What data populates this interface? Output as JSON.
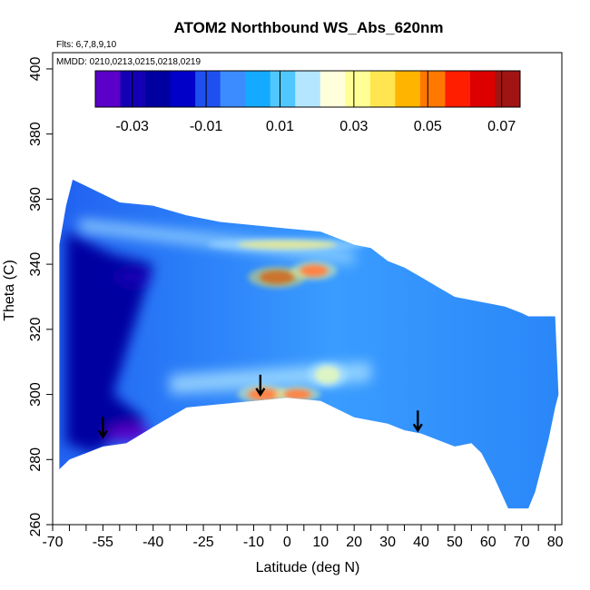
{
  "chart_data": {
    "type": "heatmap",
    "title": "ATOM2 Northbound WS_Abs_620nm",
    "flights_note": "Flts: 6,7,8,9,10",
    "dates_note": "MMDD: 0210,0213,0215,0218,0219",
    "xlabel": "Latitude (deg N)",
    "ylabel": "Theta (C)",
    "xlim": [
      -70,
      82
    ],
    "ylim": [
      260,
      405
    ],
    "x_ticks": [
      -70,
      -55,
      -40,
      -25,
      -10,
      0,
      10,
      20,
      30,
      40,
      50,
      60,
      70,
      80
    ],
    "x_tick_labels": [
      "-70",
      "-55",
      "-40",
      "-25",
      "-10",
      "0",
      "10",
      "20",
      "30",
      "40",
      "50",
      "60",
      "70",
      "80"
    ],
    "x_minor_ticks": [
      -65,
      -60,
      -50,
      -45,
      -35,
      -30,
      -20,
      -15,
      -5,
      5,
      15,
      25,
      35,
      45,
      55,
      65,
      75
    ],
    "y_ticks": [
      260,
      280,
      300,
      320,
      340,
      360,
      380,
      400
    ],
    "y_tick_labels": [
      "260",
      "280",
      "300",
      "320",
      "340",
      "360",
      "380",
      "400"
    ],
    "colorbar": {
      "range": [
        -0.04,
        0.075
      ],
      "ticks": [
        -0.03,
        -0.01,
        0.01,
        0.03,
        0.05,
        0.07
      ],
      "tick_labels": [
        "-0.03",
        "-0.01",
        "0.01",
        "0.03",
        "0.05",
        "0.07"
      ],
      "colors": [
        "#5a00c8",
        "#1400b4",
        "#0000a0",
        "#0000c8",
        "#1e50f0",
        "#3c8cff",
        "#14aaff",
        "#50c8ff",
        "#b4e6ff",
        "#ffffdc",
        "#ffff96",
        "#ffe650",
        "#ffb400",
        "#ff7800",
        "#ff1e00",
        "#dc0000",
        "#a01414"
      ]
    },
    "data_envelope_top": [
      [
        -68,
        346
      ],
      [
        -66,
        358
      ],
      [
        -64,
        366
      ],
      [
        -60,
        364
      ],
      [
        -50,
        359
      ],
      [
        -40,
        358
      ],
      [
        -30,
        355
      ],
      [
        -20,
        353
      ],
      [
        -10,
        352
      ],
      [
        0,
        351
      ],
      [
        10,
        350
      ],
      [
        20,
        346
      ],
      [
        25,
        345
      ],
      [
        30,
        341
      ],
      [
        35,
        339
      ],
      [
        40,
        336
      ],
      [
        45,
        333
      ],
      [
        50,
        330
      ],
      [
        55,
        329
      ],
      [
        60,
        328
      ],
      [
        65,
        327
      ],
      [
        70,
        325
      ],
      [
        72,
        324
      ],
      [
        80,
        324
      ]
    ],
    "data_envelope_bottom": [
      [
        -68,
        277
      ],
      [
        -65,
        280
      ],
      [
        -60,
        282
      ],
      [
        -55,
        284
      ],
      [
        -48,
        285
      ],
      [
        -40,
        290
      ],
      [
        -30,
        296
      ],
      [
        -20,
        297
      ],
      [
        -10,
        298
      ],
      [
        0,
        299
      ],
      [
        10,
        298
      ],
      [
        20,
        293
      ],
      [
        30,
        291
      ],
      [
        35,
        289
      ],
      [
        40,
        288
      ],
      [
        45,
        286
      ],
      [
        50,
        284
      ],
      [
        55,
        285
      ],
      [
        58,
        282
      ],
      [
        62,
        274
      ],
      [
        66,
        265
      ],
      [
        72,
        265
      ],
      [
        74,
        270
      ],
      [
        78,
        286
      ],
      [
        80,
        296
      ],
      [
        81,
        300
      ]
    ],
    "features": [
      {
        "name": "negative-core-south",
        "lat": -55,
        "theta": 320,
        "value": -0.03
      },
      {
        "name": "negative-lobe-south-upper",
        "lat": -45,
        "theta": 337,
        "value": -0.035
      },
      {
        "name": "negative-lobe-south-lower",
        "lat": -46,
        "theta": 288,
        "value": -0.035
      },
      {
        "name": "positive-max-upper",
        "lat": -3,
        "theta": 336,
        "value": 0.07
      },
      {
        "name": "positive-secondary-upper",
        "lat": 8,
        "theta": 338,
        "value": 0.055
      },
      {
        "name": "positive-band-upper",
        "lat": 0,
        "theta": 346,
        "value": 0.035
      },
      {
        "name": "positive-max-lower",
        "lat": -7,
        "theta": 300,
        "value": 0.06
      },
      {
        "name": "positive-secondary-lower",
        "lat": 3,
        "theta": 300,
        "value": 0.055
      },
      {
        "name": "positive-tail-lower",
        "lat": 12,
        "theta": 306,
        "value": 0.03
      }
    ],
    "tropopause_arrows": [
      {
        "lat": -55,
        "theta": 290
      },
      {
        "lat": -8,
        "theta": 303
      },
      {
        "lat": 39,
        "theta": 292
      }
    ]
  }
}
